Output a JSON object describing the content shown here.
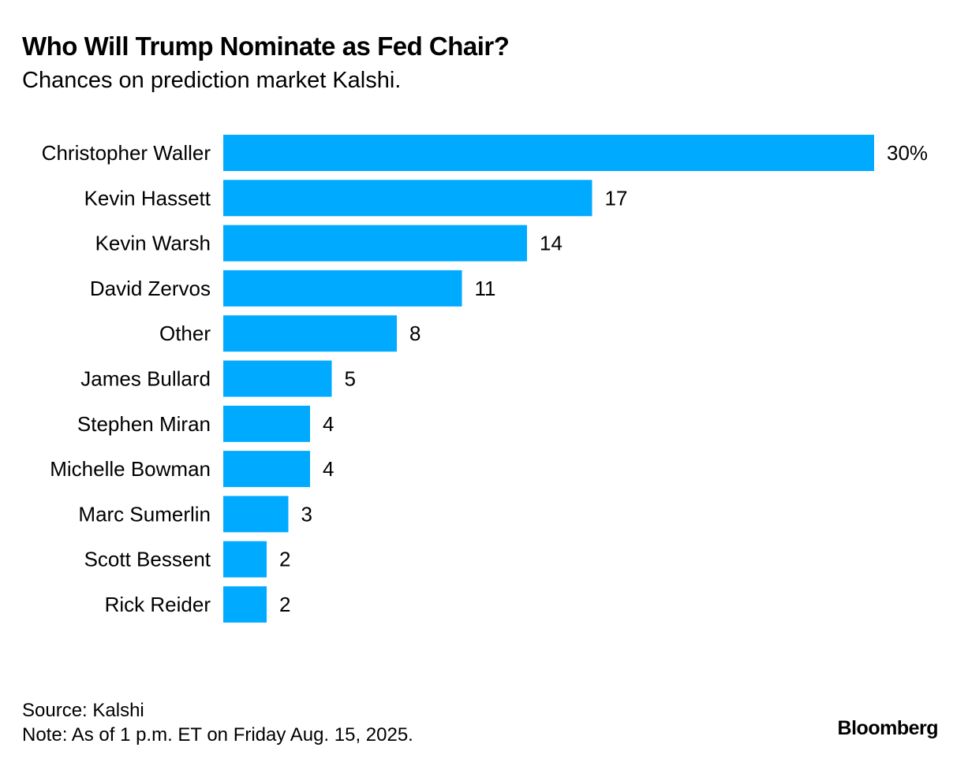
{
  "title": "Who Will Trump Nominate as Fed Chair?",
  "subtitle": "Chances on prediction market Kalshi.",
  "source": "Source: Kalshi",
  "note": "Note: As of 1 p.m. ET on Friday Aug. 15, 2025.",
  "brand": "Bloomberg",
  "colors": {
    "bar": "#00AAFF",
    "text": "#000000",
    "background": "#FFFFFF"
  },
  "chart_data": {
    "type": "bar",
    "orientation": "horizontal",
    "categories": [
      "Christopher Waller",
      "Kevin Hassett",
      "Kevin Warsh",
      "David Zervos",
      "Other",
      "James Bullard",
      "Stephen Miran",
      "Michelle Bowman",
      "Marc Sumerlin",
      "Scott Bessent",
      "Rick Reider"
    ],
    "values": [
      30,
      17,
      14,
      11,
      8,
      5,
      4,
      4,
      3,
      2,
      2
    ],
    "value_labels": [
      "30%",
      "17",
      "14",
      "11",
      "8",
      "5",
      "4",
      "4",
      "3",
      "2",
      "2"
    ],
    "xlim": [
      0,
      30
    ],
    "grid": false
  }
}
